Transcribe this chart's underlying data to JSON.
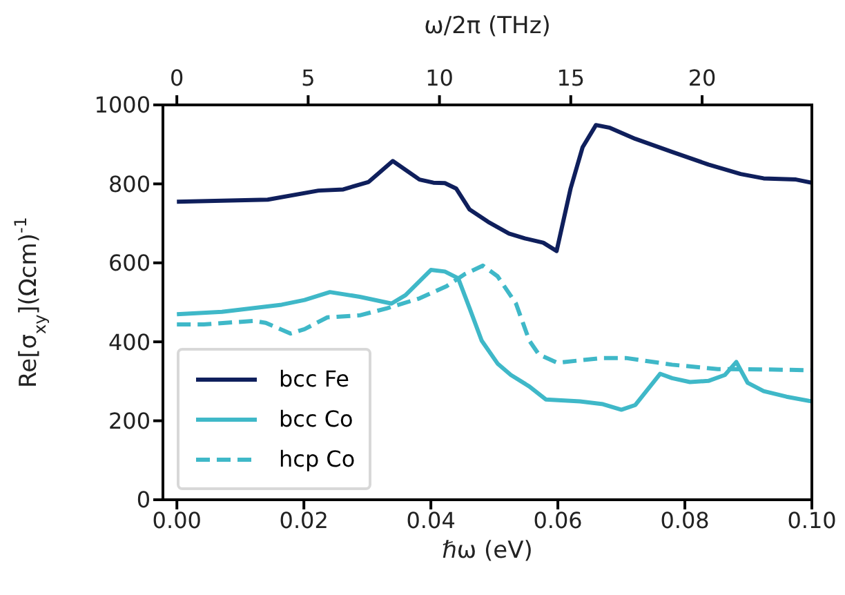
{
  "chart_data": {
    "type": "line",
    "xlabel": "ℏω (eV)",
    "ylabel": "Re[σ$_{xy}$](Ωcm)$^{-1}$",
    "x2label": "ω/2π (THz)",
    "xlim": [
      -0.0022,
      0.1
    ],
    "xticks": [
      {
        "value": 0,
        "label": "0.00"
      },
      {
        "value": 0.02,
        "label": "0.02"
      },
      {
        "value": 0.04,
        "label": "0.04"
      },
      {
        "value": 0.06,
        "label": "0.06"
      },
      {
        "value": 0.08,
        "label": "0.08"
      },
      {
        "value": 0.1,
        "label": "0.10"
      }
    ],
    "x2lim": [
      -0.53,
      24.18
    ],
    "x2ticks": [
      0,
      5,
      10,
      15,
      20
    ],
    "ylim": [
      0,
      1000
    ],
    "yticks": [
      0,
      200,
      400,
      600,
      800,
      1000
    ],
    "legend": "bottom left",
    "grid": false,
    "series": [
      {
        "name": "bcc Fe",
        "color": "#0f1f5c",
        "line_style": "solid",
        "x": [
          0,
          0.0143,
          0.0223,
          0.0262,
          0.0302,
          0.034,
          0.0382,
          0.0404,
          0.0422,
          0.044,
          0.0461,
          0.049,
          0.0523,
          0.0548,
          0.0577,
          0.0598,
          0.062,
          0.0639,
          0.066,
          0.0682,
          0.0722,
          0.078,
          0.0837,
          0.0888,
          0.0924,
          0.0975,
          0.1
        ],
        "values": [
          755,
          760,
          783,
          786,
          805,
          858,
          811,
          803,
          802,
          788,
          735,
          704,
          674,
          662,
          651,
          630,
          788,
          893,
          949,
          942,
          914,
          881,
          849,
          825,
          814,
          811,
          803
        ]
      },
      {
        "name": "bcc Co",
        "color": "#3fb8c8",
        "line_style": "solid",
        "x": [
          0,
          0.0071,
          0.0165,
          0.0201,
          0.0241,
          0.0288,
          0.0338,
          0.036,
          0.04,
          0.0422,
          0.0443,
          0.0461,
          0.048,
          0.0505,
          0.0526,
          0.0555,
          0.0581,
          0.0635,
          0.0671,
          0.07,
          0.0722,
          0.0761,
          0.078,
          0.0808,
          0.0837,
          0.0863,
          0.0881,
          0.0899,
          0.0924,
          0.096,
          0.1
        ],
        "values": [
          470,
          476,
          494,
          506,
          526,
          514,
          497,
          518,
          582,
          578,
          561,
          485,
          403,
          345,
          316,
          287,
          254,
          249,
          242,
          228,
          240,
          319,
          308,
          298,
          301,
          316,
          349,
          296,
          275,
          261,
          249
        ]
      },
      {
        "name": "hcp Co",
        "color": "#3fb8c8",
        "line_style": "dashed",
        "x": [
          0,
          0.0042,
          0.0121,
          0.014,
          0.0179,
          0.0201,
          0.0237,
          0.0288,
          0.0331,
          0.0382,
          0.0425,
          0.0454,
          0.0482,
          0.0505,
          0.0534,
          0.0555,
          0.057,
          0.0599,
          0.0671,
          0.0707,
          0.078,
          0.0852,
          0.0924,
          0.1
        ],
        "values": [
          444,
          444,
          453,
          448,
          421,
          432,
          462,
          467,
          485,
          510,
          541,
          572,
          593,
          566,
          497,
          403,
          368,
          347,
          359,
          359,
          342,
          331,
          330,
          328
        ]
      }
    ]
  }
}
